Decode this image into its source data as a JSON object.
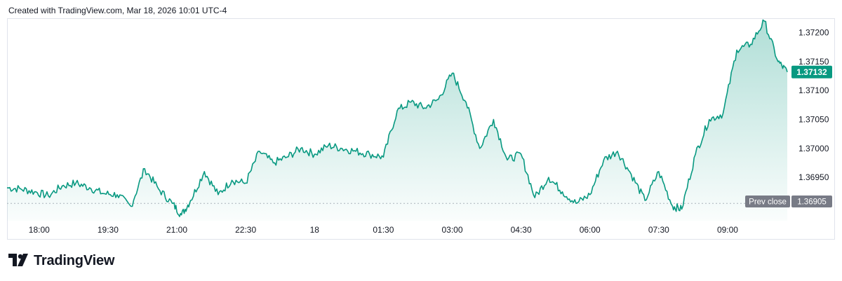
{
  "header": {
    "credit": "Created with TradingView.com, Mar 18, 2026 10:01 UTC-4"
  },
  "brand": {
    "name": "TradingView",
    "logo_icon": "tradingview-logo-icon"
  },
  "colors": {
    "line": "#089981",
    "fill_top": "#089981",
    "prev_close_bg": "#787b86",
    "last_price_bg": "#089981",
    "grid": "#e0e3eb"
  },
  "chart_data": {
    "type": "area",
    "title": "",
    "xlabel": "",
    "ylabel": "",
    "x_ticks": [
      "18:00",
      "19:30",
      "21:00",
      "22:30",
      "18",
      "01:30",
      "03:00",
      "04:30",
      "06:00",
      "07:30",
      "09:00"
    ],
    "x_tick_hours": [
      0,
      1.5,
      3,
      4.5,
      6,
      7.5,
      9,
      10.5,
      12,
      13.5,
      15
    ],
    "x_range_hours": [
      -0.7,
      16.3
    ],
    "y_ticks": [
      "1.37200",
      "1.37150",
      "1.37100",
      "1.37050",
      "1.37000",
      "1.36950"
    ],
    "ylim": [
      1.36875,
      1.37225
    ],
    "last_price": {
      "label": "1.37132",
      "value": 1.37132
    },
    "prev_close": {
      "label": "Prev close",
      "value_label": "1.36905",
      "value": 1.36905
    },
    "series": [
      {
        "x_hours": [
          -0.7,
          -0.4,
          -0.1,
          0.2,
          0.5,
          0.8,
          1.1,
          1.4,
          1.7,
          2.0,
          2.3,
          2.6,
          2.9,
          3.1,
          3.3,
          3.6,
          3.9,
          4.2,
          4.5,
          4.8,
          5.1,
          5.4,
          5.7,
          6.0,
          6.3,
          6.6,
          6.9,
          7.2,
          7.5,
          7.8,
          8.1,
          8.4,
          8.7,
          9.0,
          9.3,
          9.6,
          9.9,
          10.2,
          10.5,
          10.8,
          11.1,
          11.4,
          11.7,
          12.0,
          12.3,
          12.6,
          12.9,
          13.2,
          13.5,
          13.8,
          14.0,
          14.3,
          14.6,
          14.9,
          15.2,
          15.5,
          15.8,
          16.1,
          16.3
        ],
        "values": [
          1.36932,
          1.3693,
          1.36925,
          1.36918,
          1.36935,
          1.3694,
          1.36932,
          1.36922,
          1.3692,
          1.369,
          1.36965,
          1.3693,
          1.36905,
          1.36885,
          1.3691,
          1.3696,
          1.3692,
          1.36945,
          1.3694,
          1.36995,
          1.36975,
          1.36985,
          1.37,
          1.3699,
          1.37005,
          1.37,
          1.36995,
          1.3699,
          1.36985,
          1.37065,
          1.3708,
          1.3707,
          1.37085,
          1.3713,
          1.3708,
          1.37,
          1.3705,
          1.3698,
          1.3699,
          1.36915,
          1.3695,
          1.36925,
          1.36905,
          1.3692,
          1.3698,
          1.36995,
          1.36955,
          1.3691,
          1.3696,
          1.369,
          1.36895,
          1.3699,
          1.3705,
          1.3706,
          1.3717,
          1.3718,
          1.3722,
          1.3715,
          1.37132
        ]
      }
    ]
  }
}
